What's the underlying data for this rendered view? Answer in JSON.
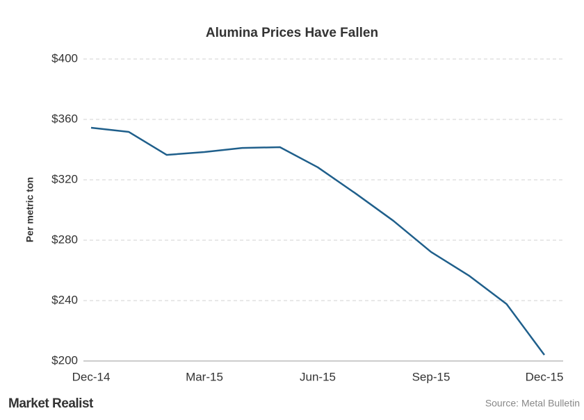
{
  "chart_data": {
    "type": "line",
    "title": "Alumina  Prices Have Fallen",
    "y_label": "Per metric ton",
    "categories": [
      "Dec-14",
      null,
      null,
      "Mar-15",
      null,
      null,
      "Jun-15",
      null,
      null,
      "Sep-15",
      null,
      null,
      "Dec-15"
    ],
    "series": [
      {
        "name": "Alumina price",
        "color": "#1f5f8b",
        "values": [
          354.5,
          351.7,
          336.5,
          338.4,
          341.1,
          341.6,
          328.3,
          311,
          292.9,
          272.2,
          256.6,
          237.7,
          204
        ]
      }
    ],
    "ylim": [
      200,
      400
    ],
    "yticks": [
      {
        "value": 200,
        "label": "$200"
      },
      {
        "value": 240,
        "label": "$240"
      },
      {
        "value": 280,
        "label": "$280"
      },
      {
        "value": 320,
        "label": "$320"
      },
      {
        "value": 360,
        "label": "$360"
      },
      {
        "value": 400,
        "label": "$400"
      }
    ],
    "grid": true,
    "source": "Source: Metal Bulletin",
    "logo": "Market Realist"
  }
}
